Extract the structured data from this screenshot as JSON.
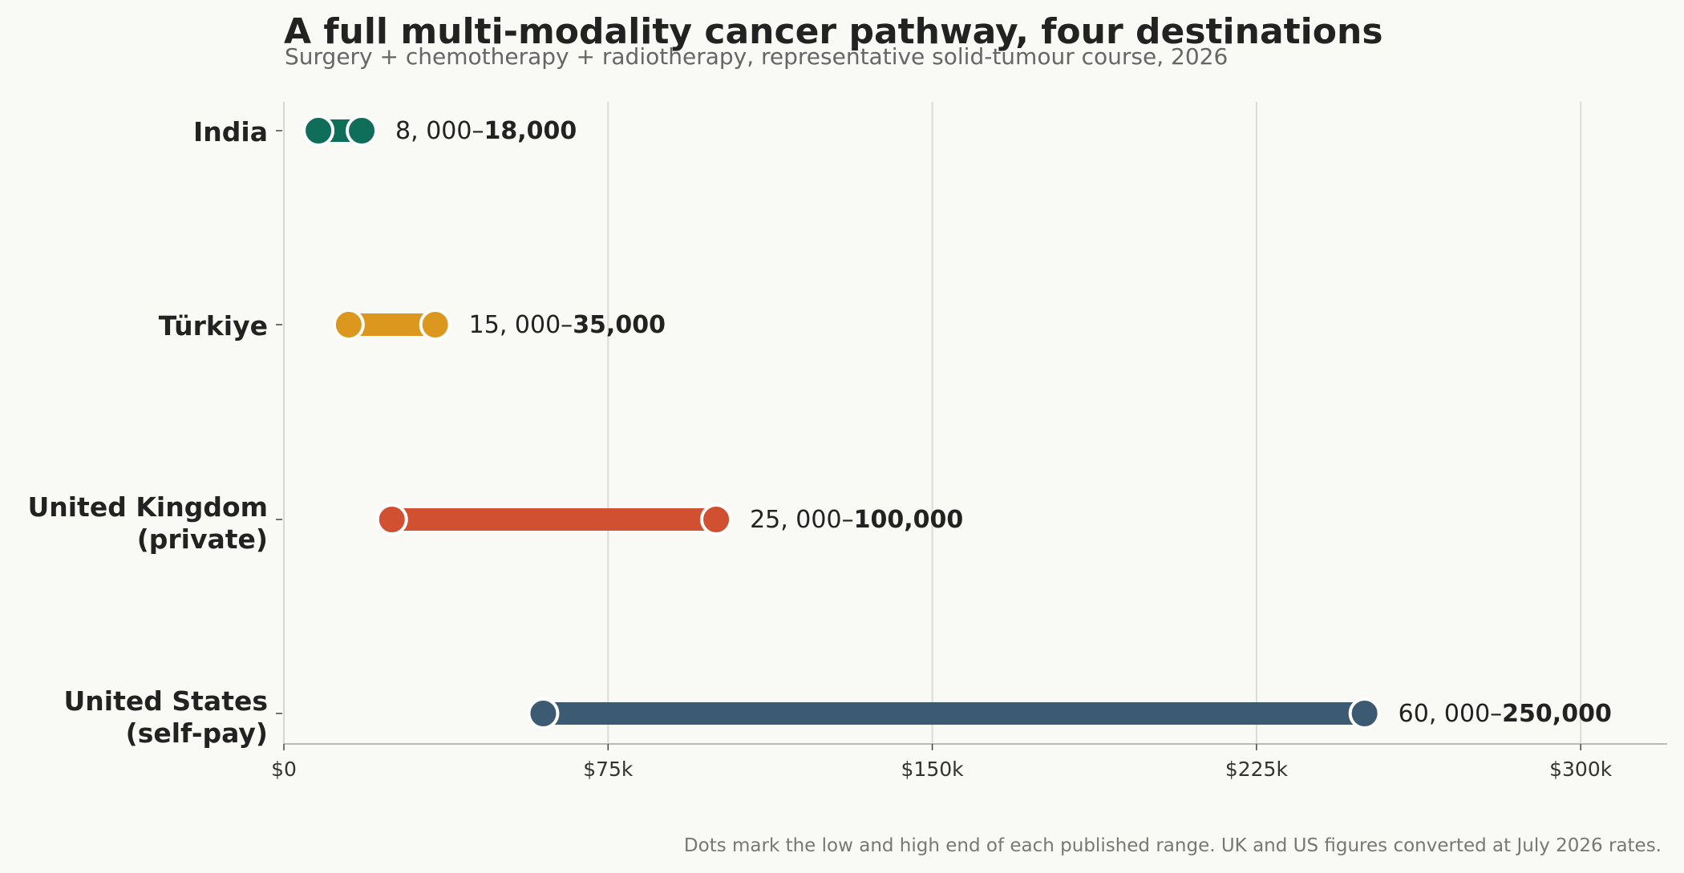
{
  "title": "A full multi-modality cancer pathway, four destinations",
  "subtitle": "Surgery + chemotherapy + radiotherapy, representative solid-tumour course, 2026",
  "footnote": "Dots mark the low and high end of each published range. UK and US figures converted at July 2026 rates.",
  "chart_data": {
    "type": "range-dot",
    "xlim": [
      0,
      320000
    ],
    "x_ticks": [
      0,
      75000,
      150000,
      225000,
      300000
    ],
    "x_tick_labels": [
      "$0",
      "$75k",
      "$150k",
      "$225k",
      "$300k"
    ],
    "grid": "vertical",
    "series": [
      {
        "label": [
          "India"
        ],
        "low": 8000,
        "high": 18000,
        "color": "#0e6e5a",
        "range_label_low": "8, 000–",
        "range_label_high": "18,000"
      },
      {
        "label": [
          "Türkiye"
        ],
        "low": 15000,
        "high": 35000,
        "color": "#dc981e",
        "range_label_low": "15, 000–",
        "range_label_high": "35,000"
      },
      {
        "label": [
          "United Kingdom",
          "(private)"
        ],
        "low": 25000,
        "high": 100000,
        "color": "#d25032",
        "range_label_low": "25, 000–",
        "range_label_high": "100,000"
      },
      {
        "label": [
          "United States",
          "(self-pay)"
        ],
        "low": 60000,
        "high": 250000,
        "color": "#3d5a73",
        "range_label_low": "60, 000–",
        "range_label_high": "250,000"
      }
    ]
  }
}
